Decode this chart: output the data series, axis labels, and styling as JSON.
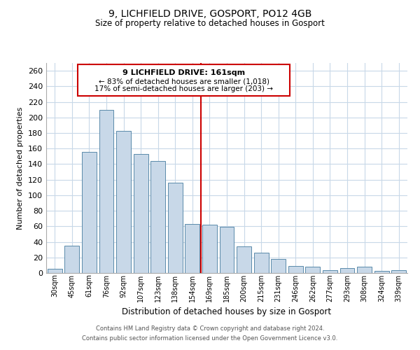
{
  "title": "9, LICHFIELD DRIVE, GOSPORT, PO12 4GB",
  "subtitle": "Size of property relative to detached houses in Gosport",
  "xlabel": "Distribution of detached houses by size in Gosport",
  "ylabel": "Number of detached properties",
  "bar_labels": [
    "30sqm",
    "45sqm",
    "61sqm",
    "76sqm",
    "92sqm",
    "107sqm",
    "123sqm",
    "138sqm",
    "154sqm",
    "169sqm",
    "185sqm",
    "200sqm",
    "215sqm",
    "231sqm",
    "246sqm",
    "262sqm",
    "277sqm",
    "293sqm",
    "308sqm",
    "324sqm",
    "339sqm"
  ],
  "bar_values": [
    5,
    35,
    156,
    210,
    183,
    153,
    144,
    116,
    63,
    62,
    59,
    34,
    26,
    18,
    9,
    8,
    4,
    6,
    8,
    3,
    4
  ],
  "bar_color": "#c8d8e8",
  "bar_edge_color": "#5a8aaa",
  "reference_line_x": 8.5,
  "reference_line_color": "#cc0000",
  "annotation_title": "9 LICHFIELD DRIVE: 161sqm",
  "annotation_line1": "← 83% of detached houses are smaller (1,018)",
  "annotation_line2": "17% of semi-detached houses are larger (203) →",
  "annotation_box_color": "#ffffff",
  "annotation_box_edge_color": "#cc0000",
  "ylim": [
    0,
    270
  ],
  "yticks": [
    0,
    20,
    40,
    60,
    80,
    100,
    120,
    140,
    160,
    180,
    200,
    220,
    240,
    260
  ],
  "footer_line1": "Contains HM Land Registry data © Crown copyright and database right 2024.",
  "footer_line2": "Contains public sector information licensed under the Open Government Licence v3.0.",
  "background_color": "#ffffff",
  "grid_color": "#c8d8e8"
}
